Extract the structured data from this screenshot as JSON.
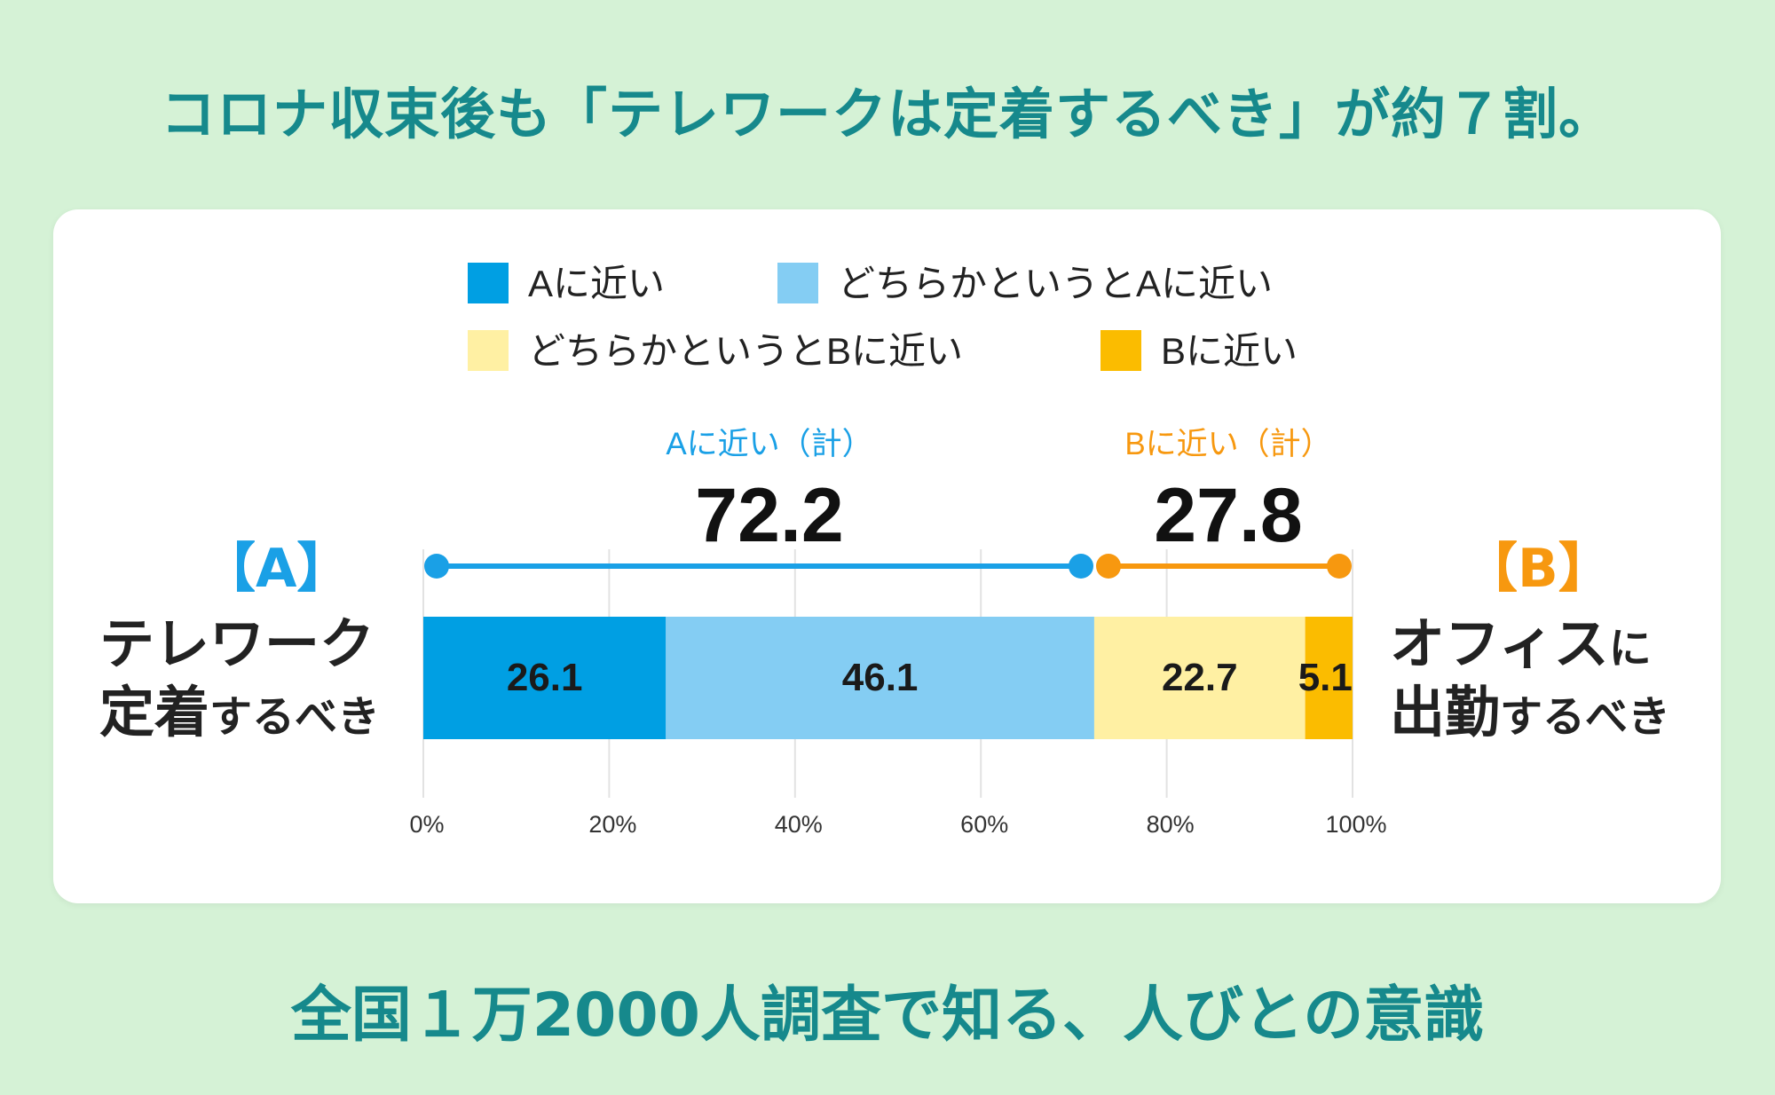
{
  "title": "コロナ収束後も「テレワークは定着するべき」が約７割。",
  "footer": "全国１万2000人調査で知る、人びとの意識",
  "left_label": {
    "bracket": "【A】",
    "line1": "テレワーク",
    "line2_big": "定着",
    "line2_small": "するべき"
  },
  "right_label": {
    "bracket": "【B】",
    "line1_big": "オフィス",
    "line1_small": "に",
    "line2_big": "出勤",
    "line2_small": "するべき"
  },
  "colors": {
    "title": "#16898c",
    "a": "#009fe3",
    "a_mild": "#84cdf3",
    "b_mild": "#fff0a3",
    "b": "#fbbc00",
    "sum_a": "#1aa0e6",
    "sum_b": "#f7980f",
    "background": "#d5f2d6"
  },
  "chart_data": {
    "type": "bar",
    "orientation": "horizontal-stacked",
    "legend": [
      "Aに近い",
      "どちらかというとAに近い",
      "どちらかというとBに近い",
      "Bに近い"
    ],
    "legend_placement": "top",
    "series": [
      {
        "name": "Aに近い",
        "values": [
          26.1
        ],
        "color": "#009fe3"
      },
      {
        "name": "どちらかというとAに近い",
        "values": [
          46.1
        ],
        "color": "#84cdf3"
      },
      {
        "name": "どちらかというとBに近い",
        "values": [
          22.7
        ],
        "color": "#fff0a3"
      },
      {
        "name": "Bに近い",
        "values": [
          5.1
        ],
        "color": "#fbbc00"
      }
    ],
    "totals": [
      {
        "label": "Aに近い（計）",
        "value": "72.2",
        "range": [
          0,
          72.2
        ],
        "color": "#1aa0e6"
      },
      {
        "label": "Bに近い（計）",
        "value": "27.8",
        "range": [
          72.2,
          100
        ],
        "color": "#f7980f"
      }
    ],
    "xlim": [
      0,
      100
    ],
    "xticks": [
      "0%",
      "20%",
      "40%",
      "60%",
      "80%",
      "100%"
    ],
    "grid": true
  }
}
